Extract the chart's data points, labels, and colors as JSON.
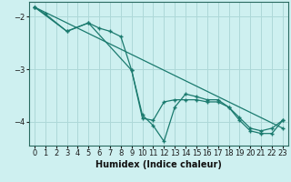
{
  "xlabel": "Humidex (Indice chaleur)",
  "ylabel": "",
  "bg_color": "#cef0f0",
  "grid_color": "#add8d8",
  "line_color": "#1a7a6e",
  "ylim": [
    -4.45,
    -1.72
  ],
  "xlim": [
    -0.5,
    23.5
  ],
  "yticks": [
    -4,
    -3,
    -2
  ],
  "xticks": [
    0,
    1,
    2,
    3,
    4,
    5,
    6,
    7,
    8,
    9,
    10,
    11,
    12,
    13,
    14,
    15,
    16,
    17,
    18,
    19,
    20,
    21,
    22,
    23
  ],
  "line1_x": [
    0,
    1,
    3,
    5,
    6,
    7,
    8,
    9,
    10,
    11,
    12,
    13,
    14,
    15,
    16,
    17,
    18,
    19,
    20,
    21,
    22,
    23
  ],
  "line1_y": [
    -1.82,
    -1.95,
    -2.28,
    -2.12,
    -2.22,
    -2.28,
    -2.38,
    -3.02,
    -3.93,
    -3.97,
    -3.62,
    -3.58,
    -3.58,
    -3.58,
    -3.62,
    -3.62,
    -3.72,
    -3.92,
    -4.12,
    -4.17,
    -4.12,
    -3.97
  ],
  "line2_x": [
    0,
    23
  ],
  "line2_y": [
    -1.82,
    -4.12
  ],
  "line3_x": [
    0,
    3,
    5,
    9,
    10,
    11,
    12,
    13,
    14,
    15,
    16,
    17,
    18,
    19,
    20,
    21,
    22,
    23
  ],
  "line3_y": [
    -1.82,
    -2.28,
    -2.12,
    -3.02,
    -3.87,
    -4.07,
    -4.37,
    -3.72,
    -3.47,
    -3.52,
    -3.58,
    -3.58,
    -3.72,
    -3.97,
    -4.17,
    -4.22,
    -4.22,
    -3.97
  ]
}
